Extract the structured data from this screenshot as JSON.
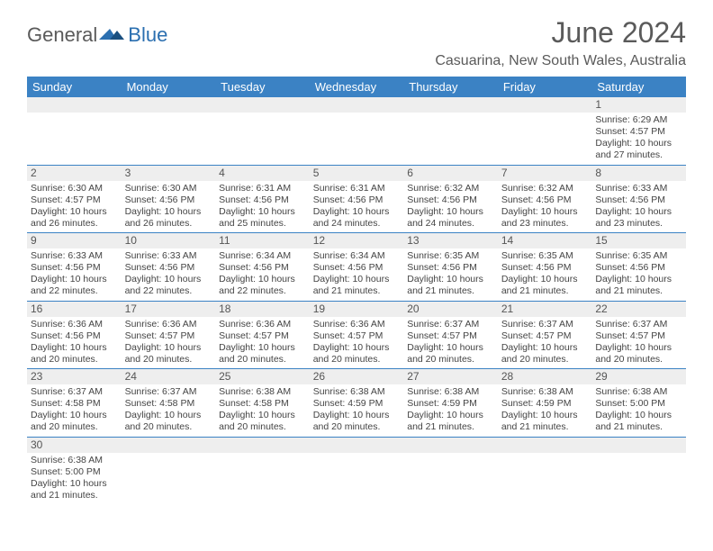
{
  "logo": {
    "part1": "General",
    "part2": "Blue"
  },
  "title": "June 2024",
  "location": "Casuarina, New South Wales, Australia",
  "colors": {
    "header_bg": "#3b82c4",
    "header_text": "#ffffff",
    "daynum_bg": "#eeeeee",
    "border": "#3b82c4",
    "title_color": "#5a5a5a"
  },
  "day_headers": [
    "Sunday",
    "Monday",
    "Tuesday",
    "Wednesday",
    "Thursday",
    "Friday",
    "Saturday"
  ],
  "weeks": [
    [
      null,
      null,
      null,
      null,
      null,
      null,
      {
        "n": "1",
        "sunrise": "Sunrise: 6:29 AM",
        "sunset": "Sunset: 4:57 PM",
        "day1": "Daylight: 10 hours",
        "day2": "and 27 minutes."
      }
    ],
    [
      {
        "n": "2",
        "sunrise": "Sunrise: 6:30 AM",
        "sunset": "Sunset: 4:57 PM",
        "day1": "Daylight: 10 hours",
        "day2": "and 26 minutes."
      },
      {
        "n": "3",
        "sunrise": "Sunrise: 6:30 AM",
        "sunset": "Sunset: 4:56 PM",
        "day1": "Daylight: 10 hours",
        "day2": "and 26 minutes."
      },
      {
        "n": "4",
        "sunrise": "Sunrise: 6:31 AM",
        "sunset": "Sunset: 4:56 PM",
        "day1": "Daylight: 10 hours",
        "day2": "and 25 minutes."
      },
      {
        "n": "5",
        "sunrise": "Sunrise: 6:31 AM",
        "sunset": "Sunset: 4:56 PM",
        "day1": "Daylight: 10 hours",
        "day2": "and 24 minutes."
      },
      {
        "n": "6",
        "sunrise": "Sunrise: 6:32 AM",
        "sunset": "Sunset: 4:56 PM",
        "day1": "Daylight: 10 hours",
        "day2": "and 24 minutes."
      },
      {
        "n": "7",
        "sunrise": "Sunrise: 6:32 AM",
        "sunset": "Sunset: 4:56 PM",
        "day1": "Daylight: 10 hours",
        "day2": "and 23 minutes."
      },
      {
        "n": "8",
        "sunrise": "Sunrise: 6:33 AM",
        "sunset": "Sunset: 4:56 PM",
        "day1": "Daylight: 10 hours",
        "day2": "and 23 minutes."
      }
    ],
    [
      {
        "n": "9",
        "sunrise": "Sunrise: 6:33 AM",
        "sunset": "Sunset: 4:56 PM",
        "day1": "Daylight: 10 hours",
        "day2": "and 22 minutes."
      },
      {
        "n": "10",
        "sunrise": "Sunrise: 6:33 AM",
        "sunset": "Sunset: 4:56 PM",
        "day1": "Daylight: 10 hours",
        "day2": "and 22 minutes."
      },
      {
        "n": "11",
        "sunrise": "Sunrise: 6:34 AM",
        "sunset": "Sunset: 4:56 PM",
        "day1": "Daylight: 10 hours",
        "day2": "and 22 minutes."
      },
      {
        "n": "12",
        "sunrise": "Sunrise: 6:34 AM",
        "sunset": "Sunset: 4:56 PM",
        "day1": "Daylight: 10 hours",
        "day2": "and 21 minutes."
      },
      {
        "n": "13",
        "sunrise": "Sunrise: 6:35 AM",
        "sunset": "Sunset: 4:56 PM",
        "day1": "Daylight: 10 hours",
        "day2": "and 21 minutes."
      },
      {
        "n": "14",
        "sunrise": "Sunrise: 6:35 AM",
        "sunset": "Sunset: 4:56 PM",
        "day1": "Daylight: 10 hours",
        "day2": "and 21 minutes."
      },
      {
        "n": "15",
        "sunrise": "Sunrise: 6:35 AM",
        "sunset": "Sunset: 4:56 PM",
        "day1": "Daylight: 10 hours",
        "day2": "and 21 minutes."
      }
    ],
    [
      {
        "n": "16",
        "sunrise": "Sunrise: 6:36 AM",
        "sunset": "Sunset: 4:56 PM",
        "day1": "Daylight: 10 hours",
        "day2": "and 20 minutes."
      },
      {
        "n": "17",
        "sunrise": "Sunrise: 6:36 AM",
        "sunset": "Sunset: 4:57 PM",
        "day1": "Daylight: 10 hours",
        "day2": "and 20 minutes."
      },
      {
        "n": "18",
        "sunrise": "Sunrise: 6:36 AM",
        "sunset": "Sunset: 4:57 PM",
        "day1": "Daylight: 10 hours",
        "day2": "and 20 minutes."
      },
      {
        "n": "19",
        "sunrise": "Sunrise: 6:36 AM",
        "sunset": "Sunset: 4:57 PM",
        "day1": "Daylight: 10 hours",
        "day2": "and 20 minutes."
      },
      {
        "n": "20",
        "sunrise": "Sunrise: 6:37 AM",
        "sunset": "Sunset: 4:57 PM",
        "day1": "Daylight: 10 hours",
        "day2": "and 20 minutes."
      },
      {
        "n": "21",
        "sunrise": "Sunrise: 6:37 AM",
        "sunset": "Sunset: 4:57 PM",
        "day1": "Daylight: 10 hours",
        "day2": "and 20 minutes."
      },
      {
        "n": "22",
        "sunrise": "Sunrise: 6:37 AM",
        "sunset": "Sunset: 4:57 PM",
        "day1": "Daylight: 10 hours",
        "day2": "and 20 minutes."
      }
    ],
    [
      {
        "n": "23",
        "sunrise": "Sunrise: 6:37 AM",
        "sunset": "Sunset: 4:58 PM",
        "day1": "Daylight: 10 hours",
        "day2": "and 20 minutes."
      },
      {
        "n": "24",
        "sunrise": "Sunrise: 6:37 AM",
        "sunset": "Sunset: 4:58 PM",
        "day1": "Daylight: 10 hours",
        "day2": "and 20 minutes."
      },
      {
        "n": "25",
        "sunrise": "Sunrise: 6:38 AM",
        "sunset": "Sunset: 4:58 PM",
        "day1": "Daylight: 10 hours",
        "day2": "and 20 minutes."
      },
      {
        "n": "26",
        "sunrise": "Sunrise: 6:38 AM",
        "sunset": "Sunset: 4:59 PM",
        "day1": "Daylight: 10 hours",
        "day2": "and 20 minutes."
      },
      {
        "n": "27",
        "sunrise": "Sunrise: 6:38 AM",
        "sunset": "Sunset: 4:59 PM",
        "day1": "Daylight: 10 hours",
        "day2": "and 21 minutes."
      },
      {
        "n": "28",
        "sunrise": "Sunrise: 6:38 AM",
        "sunset": "Sunset: 4:59 PM",
        "day1": "Daylight: 10 hours",
        "day2": "and 21 minutes."
      },
      {
        "n": "29",
        "sunrise": "Sunrise: 6:38 AM",
        "sunset": "Sunset: 5:00 PM",
        "day1": "Daylight: 10 hours",
        "day2": "and 21 minutes."
      }
    ],
    [
      {
        "n": "30",
        "sunrise": "Sunrise: 6:38 AM",
        "sunset": "Sunset: 5:00 PM",
        "day1": "Daylight: 10 hours",
        "day2": "and 21 minutes."
      },
      null,
      null,
      null,
      null,
      null,
      null
    ]
  ]
}
